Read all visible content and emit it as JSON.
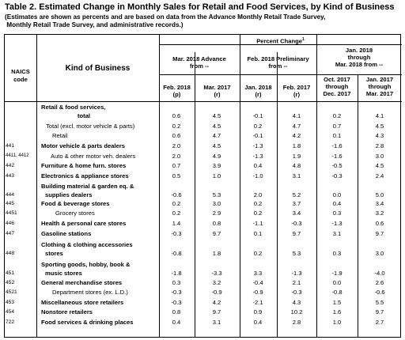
{
  "title": "Table 2.  Estimated Change in Monthly Sales for Retail and Food Services, by Kind of Business",
  "note_lines": [
    "(Estimates are shown as percents and are based on data from the Advance Monthly Retail Trade Survey,",
    " Monthly Retail Trade Survey, and administrative records.)"
  ],
  "header": {
    "naics": [
      "NAICS",
      "code"
    ],
    "kind": "Kind of Business",
    "percent_change": "Percent Change",
    "footnote": "1",
    "groups": [
      [
        "Mar. 2018 Advance",
        "from --"
      ],
      [
        "Feb. 2018 Preliminary",
        "from --"
      ],
      [
        "Jan. 2018",
        "through",
        "Mar. 2018 from --"
      ]
    ],
    "cols": [
      [
        "Feb. 2018",
        "(p)"
      ],
      [
        "Mar. 2017",
        "(r)"
      ],
      [
        "Jan. 2018",
        "(r)"
      ],
      [
        "Feb. 2017",
        "(r)"
      ],
      [
        "Oct. 2017",
        "through",
        "Dec. 2017"
      ],
      [
        "Jan. 2017",
        "through",
        "Mar. 2017"
      ]
    ]
  },
  "rows": [
    {
      "code": "",
      "name": [
        "Retail & food services,",
        "total"
      ],
      "bold": true,
      "name_indent": 0,
      "values": [
        "0.6",
        "4.5",
        "-0.1",
        "4.1",
        "0.2",
        "4.1"
      ]
    },
    {
      "code": "",
      "name": [
        "Total (excl. motor vehicle & parts)"
      ],
      "bold": false,
      "name_indent": 6,
      "values": [
        "0.2",
        "4.5",
        "0.2",
        "4.7",
        "0.7",
        "4.5"
      ]
    },
    {
      "code": "",
      "name": [
        "Retail"
      ],
      "bold": false,
      "name_indent": 14,
      "values": [
        "0.6",
        "4.7",
        "-0.1",
        "4.2",
        "0.1",
        "4.3"
      ]
    },
    {
      "code": "441",
      "name": [
        "Motor vehicle & parts dealers"
      ],
      "bold": true,
      "name_indent": 0,
      "values": [
        "2.0",
        "4.5",
        "-1.3",
        "1.8",
        "-1.6",
        "2.8"
      ]
    },
    {
      "code": "4411, 4412",
      "name": [
        "Auto & other motor veh. dealers"
      ],
      "bold": false,
      "name_indent": 12,
      "values": [
        "2.0",
        "4.9",
        "-1.3",
        "1.9",
        "-1.6",
        "3.0"
      ]
    },
    {
      "code": "442",
      "name": [
        "Furniture & home furn. stores"
      ],
      "bold": true,
      "name_indent": 0,
      "values": [
        "0.7",
        "3.9",
        "0.4",
        "4.8",
        "-0.5",
        "4.5"
      ]
    },
    {
      "code": "443",
      "name": [
        "Electronics & appliance stores"
      ],
      "bold": true,
      "name_indent": 0,
      "values": [
        "0.5",
        "1.0",
        "-1.0",
        "3.1",
        "-0.3",
        "2.4"
      ]
    },
    {
      "code": "444",
      "name": [
        "Building material & garden eq. &",
        "supplies dealers"
      ],
      "bold": true,
      "name_indent": 0,
      "values": [
        "-0.6",
        "5.3",
        "2.0",
        "5.2",
        "0.0",
        "5.0"
      ]
    },
    {
      "code": "445",
      "name": [
        "Food & beverage stores"
      ],
      "bold": true,
      "name_indent": 0,
      "values": [
        "0.2",
        "3.0",
        "0.2",
        "3.7",
        "0.4",
        "3.4"
      ]
    },
    {
      "code": "4451",
      "name": [
        "Grocery stores"
      ],
      "bold": false,
      "name_indent": 18,
      "values": [
        "0.2",
        "2.9",
        "0.2",
        "3.4",
        "0.3",
        "3.2"
      ]
    },
    {
      "code": "446",
      "name": [
        "Health & personal care stores"
      ],
      "bold": true,
      "name_indent": 0,
      "values": [
        "1.4",
        "0.8",
        "-1.1",
        "-0.3",
        "-1.3",
        "0.6"
      ]
    },
    {
      "code": "447",
      "name": [
        "Gasoline stations"
      ],
      "bold": true,
      "name_indent": 0,
      "values": [
        "-0.3",
        "9.7",
        "0.1",
        "9.7",
        "3.1",
        "9.7"
      ]
    },
    {
      "code": "448",
      "name": [
        "Clothing & clothing accessories",
        "stores"
      ],
      "bold": true,
      "name_indent": 0,
      "values": [
        "-0.8",
        "1.8",
        "0.2",
        "5.3",
        "0.3",
        "3.0"
      ]
    },
    {
      "code": "451",
      "name": [
        "Sporting goods, hobby, book &",
        "music stores"
      ],
      "bold": true,
      "name_indent": 0,
      "values": [
        "-1.8",
        "-3.3",
        "3.3",
        "-1.3",
        "-1.9",
        "-4.0"
      ]
    },
    {
      "code": "452",
      "name": [
        "General merchandise stores"
      ],
      "bold": true,
      "name_indent": 0,
      "values": [
        "0.3",
        "3.2",
        "-0.4",
        "2.1",
        "0.0",
        "2.6"
      ]
    },
    {
      "code": "4521",
      "name": [
        "Department stores (ex. L.D.)"
      ],
      "bold": false,
      "name_indent": 14,
      "values": [
        "-0.3",
        "-0.9",
        "-0.9",
        "-0.3",
        "-0.8",
        "-0.6"
      ]
    },
    {
      "code": "453",
      "name": [
        "Miscellaneous store retailers"
      ],
      "bold": true,
      "name_indent": 0,
      "values": [
        "-0.3",
        "4.2",
        "-2.1",
        "4.3",
        "1.5",
        "5.5"
      ]
    },
    {
      "code": "454",
      "name": [
        "Nonstore retailers"
      ],
      "bold": true,
      "name_indent": 0,
      "values": [
        "0.8",
        "9.7",
        "0.9",
        "10.2",
        "1.6",
        "9.7"
      ]
    },
    {
      "code": "722",
      "name": [
        "Food services & drinking places"
      ],
      "bold": true,
      "name_indent": 0,
      "values": [
        "0.4",
        "3.1",
        "0.4",
        "2.8",
        "1.0",
        "2.7"
      ]
    }
  ]
}
